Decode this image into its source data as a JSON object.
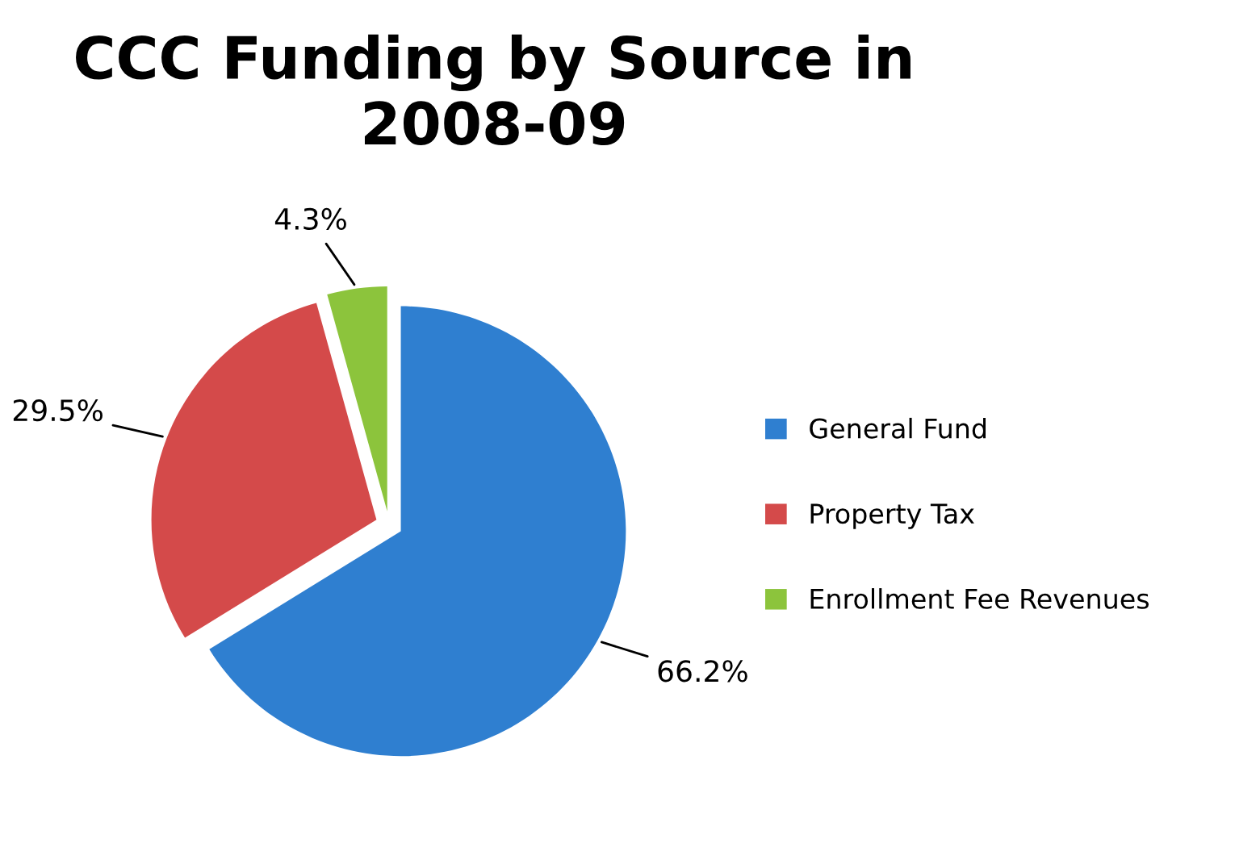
{
  "chart_data": {
    "type": "pie",
    "title": "CCC Funding by Source in 2008-09",
    "categories": [
      "General Fund",
      "Property Tax",
      "Enrollment Fee Revenues"
    ],
    "values": [
      66.2,
      29.5,
      4.3
    ],
    "colors": [
      "#2f7fd0",
      "#d44a4a",
      "#8cc43c"
    ],
    "value_labels": [
      "66.2%",
      "29.5%",
      "4.3%"
    ],
    "legend": "right"
  }
}
